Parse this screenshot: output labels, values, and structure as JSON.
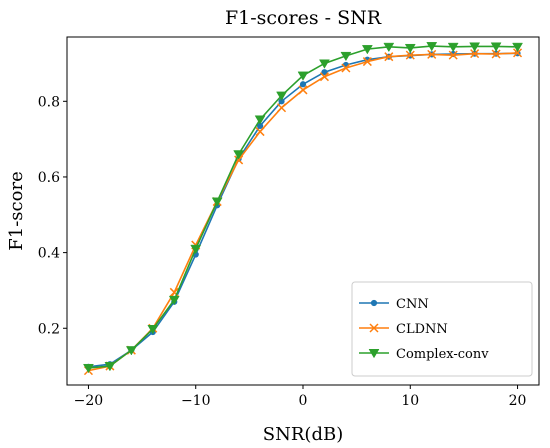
{
  "chart_data": {
    "type": "line",
    "title": "F1-scores - SNR",
    "xlabel": "SNR(dB)",
    "ylabel": "F1-score",
    "xlim": [
      -22,
      22
    ],
    "ylim": [
      0.05,
      0.97
    ],
    "xticks": [
      -20,
      -10,
      0,
      10,
      20
    ],
    "xtick_labels": [
      "−20",
      "−10",
      "0",
      "10",
      "20"
    ],
    "yticks": [
      0.2,
      0.4,
      0.6,
      0.8
    ],
    "ytick_labels": [
      "0.2",
      "0.4",
      "0.6",
      "0.8"
    ],
    "grid": false,
    "legend_position": "bottom-right",
    "x": [
      -20,
      -18,
      -16,
      -14,
      -12,
      -10,
      -8,
      -6,
      -4,
      -2,
      0,
      2,
      4,
      6,
      8,
      10,
      12,
      14,
      16,
      18,
      20
    ],
    "series": [
      {
        "name": "CNN",
        "color": "#1f77b4",
        "marker": "circle",
        "values": [
          0.098,
          0.105,
          0.142,
          0.19,
          0.27,
          0.395,
          0.525,
          0.648,
          0.735,
          0.8,
          0.845,
          0.877,
          0.896,
          0.91,
          0.918,
          0.921,
          0.924,
          0.925,
          0.926,
          0.926,
          0.927
        ]
      },
      {
        "name": "CLDNN",
        "color": "#ff7f0e",
        "marker": "x",
        "values": [
          0.088,
          0.1,
          0.142,
          0.2,
          0.295,
          0.42,
          0.535,
          0.645,
          0.72,
          0.783,
          0.83,
          0.865,
          0.888,
          0.905,
          0.918,
          0.922,
          0.924,
          0.922,
          0.926,
          0.925,
          0.928
        ]
      },
      {
        "name": "Complex-conv",
        "color": "#2ca02c",
        "marker": "triangle-down",
        "values": [
          0.095,
          0.1,
          0.142,
          0.198,
          0.275,
          0.41,
          0.535,
          0.66,
          0.752,
          0.815,
          0.868,
          0.9,
          0.92,
          0.938,
          0.944,
          0.941,
          0.946,
          0.944,
          0.945,
          0.945,
          0.944
        ]
      }
    ]
  }
}
